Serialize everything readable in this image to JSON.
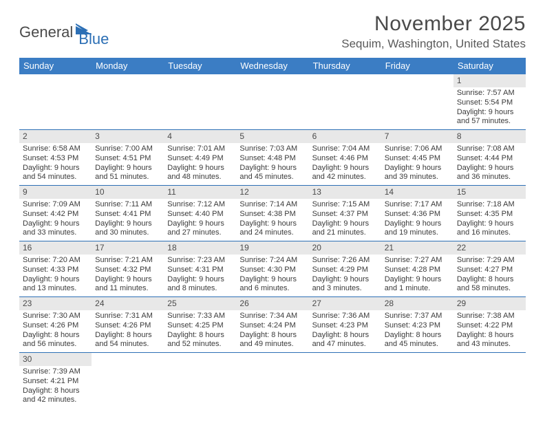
{
  "logo": {
    "general": "General",
    "blue": "Blue"
  },
  "title": "November 2025",
  "location": "Sequim, Washington, United States",
  "day_headers": [
    "Sunday",
    "Monday",
    "Tuesday",
    "Wednesday",
    "Thursday",
    "Friday",
    "Saturday"
  ],
  "colors": {
    "header_bg": "#3b7dc4",
    "header_text": "#ffffff",
    "daynum_bg": "#e8e8e8",
    "row_border": "#2c6fb5",
    "text": "#3a3a3a",
    "logo_blue": "#2c6fb5"
  },
  "weeks": [
    [
      null,
      null,
      null,
      null,
      null,
      null,
      {
        "n": "1",
        "sr": "Sunrise: 7:57 AM",
        "ss": "Sunset: 5:54 PM",
        "dl": "Daylight: 9 hours and 57 minutes."
      }
    ],
    [
      {
        "n": "2",
        "sr": "Sunrise: 6:58 AM",
        "ss": "Sunset: 4:53 PM",
        "dl": "Daylight: 9 hours and 54 minutes."
      },
      {
        "n": "3",
        "sr": "Sunrise: 7:00 AM",
        "ss": "Sunset: 4:51 PM",
        "dl": "Daylight: 9 hours and 51 minutes."
      },
      {
        "n": "4",
        "sr": "Sunrise: 7:01 AM",
        "ss": "Sunset: 4:49 PM",
        "dl": "Daylight: 9 hours and 48 minutes."
      },
      {
        "n": "5",
        "sr": "Sunrise: 7:03 AM",
        "ss": "Sunset: 4:48 PM",
        "dl": "Daylight: 9 hours and 45 minutes."
      },
      {
        "n": "6",
        "sr": "Sunrise: 7:04 AM",
        "ss": "Sunset: 4:46 PM",
        "dl": "Daylight: 9 hours and 42 minutes."
      },
      {
        "n": "7",
        "sr": "Sunrise: 7:06 AM",
        "ss": "Sunset: 4:45 PM",
        "dl": "Daylight: 9 hours and 39 minutes."
      },
      {
        "n": "8",
        "sr": "Sunrise: 7:08 AM",
        "ss": "Sunset: 4:44 PM",
        "dl": "Daylight: 9 hours and 36 minutes."
      }
    ],
    [
      {
        "n": "9",
        "sr": "Sunrise: 7:09 AM",
        "ss": "Sunset: 4:42 PM",
        "dl": "Daylight: 9 hours and 33 minutes."
      },
      {
        "n": "10",
        "sr": "Sunrise: 7:11 AM",
        "ss": "Sunset: 4:41 PM",
        "dl": "Daylight: 9 hours and 30 minutes."
      },
      {
        "n": "11",
        "sr": "Sunrise: 7:12 AM",
        "ss": "Sunset: 4:40 PM",
        "dl": "Daylight: 9 hours and 27 minutes."
      },
      {
        "n": "12",
        "sr": "Sunrise: 7:14 AM",
        "ss": "Sunset: 4:38 PM",
        "dl": "Daylight: 9 hours and 24 minutes."
      },
      {
        "n": "13",
        "sr": "Sunrise: 7:15 AM",
        "ss": "Sunset: 4:37 PM",
        "dl": "Daylight: 9 hours and 21 minutes."
      },
      {
        "n": "14",
        "sr": "Sunrise: 7:17 AM",
        "ss": "Sunset: 4:36 PM",
        "dl": "Daylight: 9 hours and 19 minutes."
      },
      {
        "n": "15",
        "sr": "Sunrise: 7:18 AM",
        "ss": "Sunset: 4:35 PM",
        "dl": "Daylight: 9 hours and 16 minutes."
      }
    ],
    [
      {
        "n": "16",
        "sr": "Sunrise: 7:20 AM",
        "ss": "Sunset: 4:33 PM",
        "dl": "Daylight: 9 hours and 13 minutes."
      },
      {
        "n": "17",
        "sr": "Sunrise: 7:21 AM",
        "ss": "Sunset: 4:32 PM",
        "dl": "Daylight: 9 hours and 11 minutes."
      },
      {
        "n": "18",
        "sr": "Sunrise: 7:23 AM",
        "ss": "Sunset: 4:31 PM",
        "dl": "Daylight: 9 hours and 8 minutes."
      },
      {
        "n": "19",
        "sr": "Sunrise: 7:24 AM",
        "ss": "Sunset: 4:30 PM",
        "dl": "Daylight: 9 hours and 6 minutes."
      },
      {
        "n": "20",
        "sr": "Sunrise: 7:26 AM",
        "ss": "Sunset: 4:29 PM",
        "dl": "Daylight: 9 hours and 3 minutes."
      },
      {
        "n": "21",
        "sr": "Sunrise: 7:27 AM",
        "ss": "Sunset: 4:28 PM",
        "dl": "Daylight: 9 hours and 1 minute."
      },
      {
        "n": "22",
        "sr": "Sunrise: 7:29 AM",
        "ss": "Sunset: 4:27 PM",
        "dl": "Daylight: 8 hours and 58 minutes."
      }
    ],
    [
      {
        "n": "23",
        "sr": "Sunrise: 7:30 AM",
        "ss": "Sunset: 4:26 PM",
        "dl": "Daylight: 8 hours and 56 minutes."
      },
      {
        "n": "24",
        "sr": "Sunrise: 7:31 AM",
        "ss": "Sunset: 4:26 PM",
        "dl": "Daylight: 8 hours and 54 minutes."
      },
      {
        "n": "25",
        "sr": "Sunrise: 7:33 AM",
        "ss": "Sunset: 4:25 PM",
        "dl": "Daylight: 8 hours and 52 minutes."
      },
      {
        "n": "26",
        "sr": "Sunrise: 7:34 AM",
        "ss": "Sunset: 4:24 PM",
        "dl": "Daylight: 8 hours and 49 minutes."
      },
      {
        "n": "27",
        "sr": "Sunrise: 7:36 AM",
        "ss": "Sunset: 4:23 PM",
        "dl": "Daylight: 8 hours and 47 minutes."
      },
      {
        "n": "28",
        "sr": "Sunrise: 7:37 AM",
        "ss": "Sunset: 4:23 PM",
        "dl": "Daylight: 8 hours and 45 minutes."
      },
      {
        "n": "29",
        "sr": "Sunrise: 7:38 AM",
        "ss": "Sunset: 4:22 PM",
        "dl": "Daylight: 8 hours and 43 minutes."
      }
    ],
    [
      {
        "n": "30",
        "sr": "Sunrise: 7:39 AM",
        "ss": "Sunset: 4:21 PM",
        "dl": "Daylight: 8 hours and 42 minutes."
      },
      null,
      null,
      null,
      null,
      null,
      null
    ]
  ]
}
